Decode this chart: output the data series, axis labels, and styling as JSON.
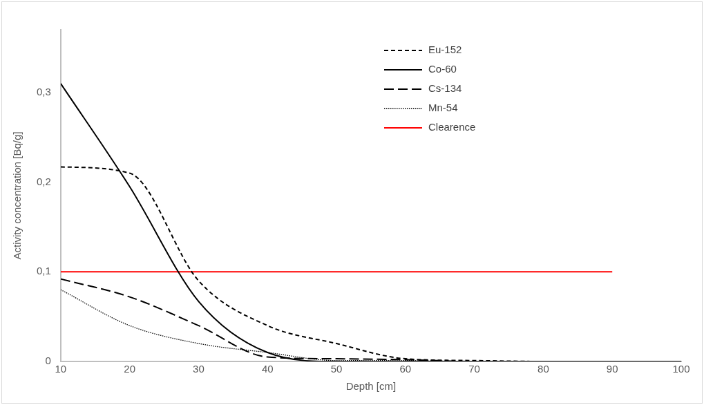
{
  "chart_data": {
    "type": "line",
    "xlabel": "Depth [cm]",
    "ylabel": "Activity concentration [Bq/g]",
    "x": [
      10,
      20,
      30,
      40,
      50,
      60,
      70,
      80,
      90,
      100
    ],
    "series": [
      {
        "name": "Eu-152",
        "color": "#000000",
        "line_style": "dashed",
        "values": [
          0.217,
          0.21,
          0.09,
          0.04,
          0.02,
          0.003,
          0.001,
          0,
          0,
          0
        ]
      },
      {
        "name": "Co-60",
        "color": "#000000",
        "line_style": "solid",
        "values": [
          0.31,
          0.195,
          0.067,
          0.01,
          0,
          0,
          0,
          0,
          0,
          0
        ]
      },
      {
        "name": "Cs-134",
        "color": "#000000",
        "line_style": "longdash",
        "values": [
          0.092,
          0.072,
          0.04,
          0.005,
          0.003,
          0.002,
          0,
          0,
          0,
          0
        ]
      },
      {
        "name": "Mn-54",
        "color": "#000000",
        "line_style": "dotted",
        "values": [
          0.08,
          0.04,
          0.02,
          0.01,
          0.001,
          0.001,
          0,
          0,
          0,
          0
        ]
      },
      {
        "name": "Clearence",
        "color": "#ff0000",
        "line_style": "solid",
        "x": [
          10,
          90
        ],
        "values": [
          0.1,
          0.1
        ]
      }
    ],
    "xlim": [
      10,
      100
    ],
    "xticks": [
      10,
      20,
      30,
      40,
      50,
      60,
      70,
      80,
      90,
      100
    ],
    "ylim": [
      0,
      0.37
    ],
    "yticks": [
      0,
      {
        "value": 0.1,
        "label": "0,1"
      },
      {
        "value": 0.2,
        "label": "0,2"
      },
      {
        "value": 0.3,
        "label": "0,3"
      }
    ],
    "grid": false,
    "legend": "top right",
    "marker": "none"
  }
}
